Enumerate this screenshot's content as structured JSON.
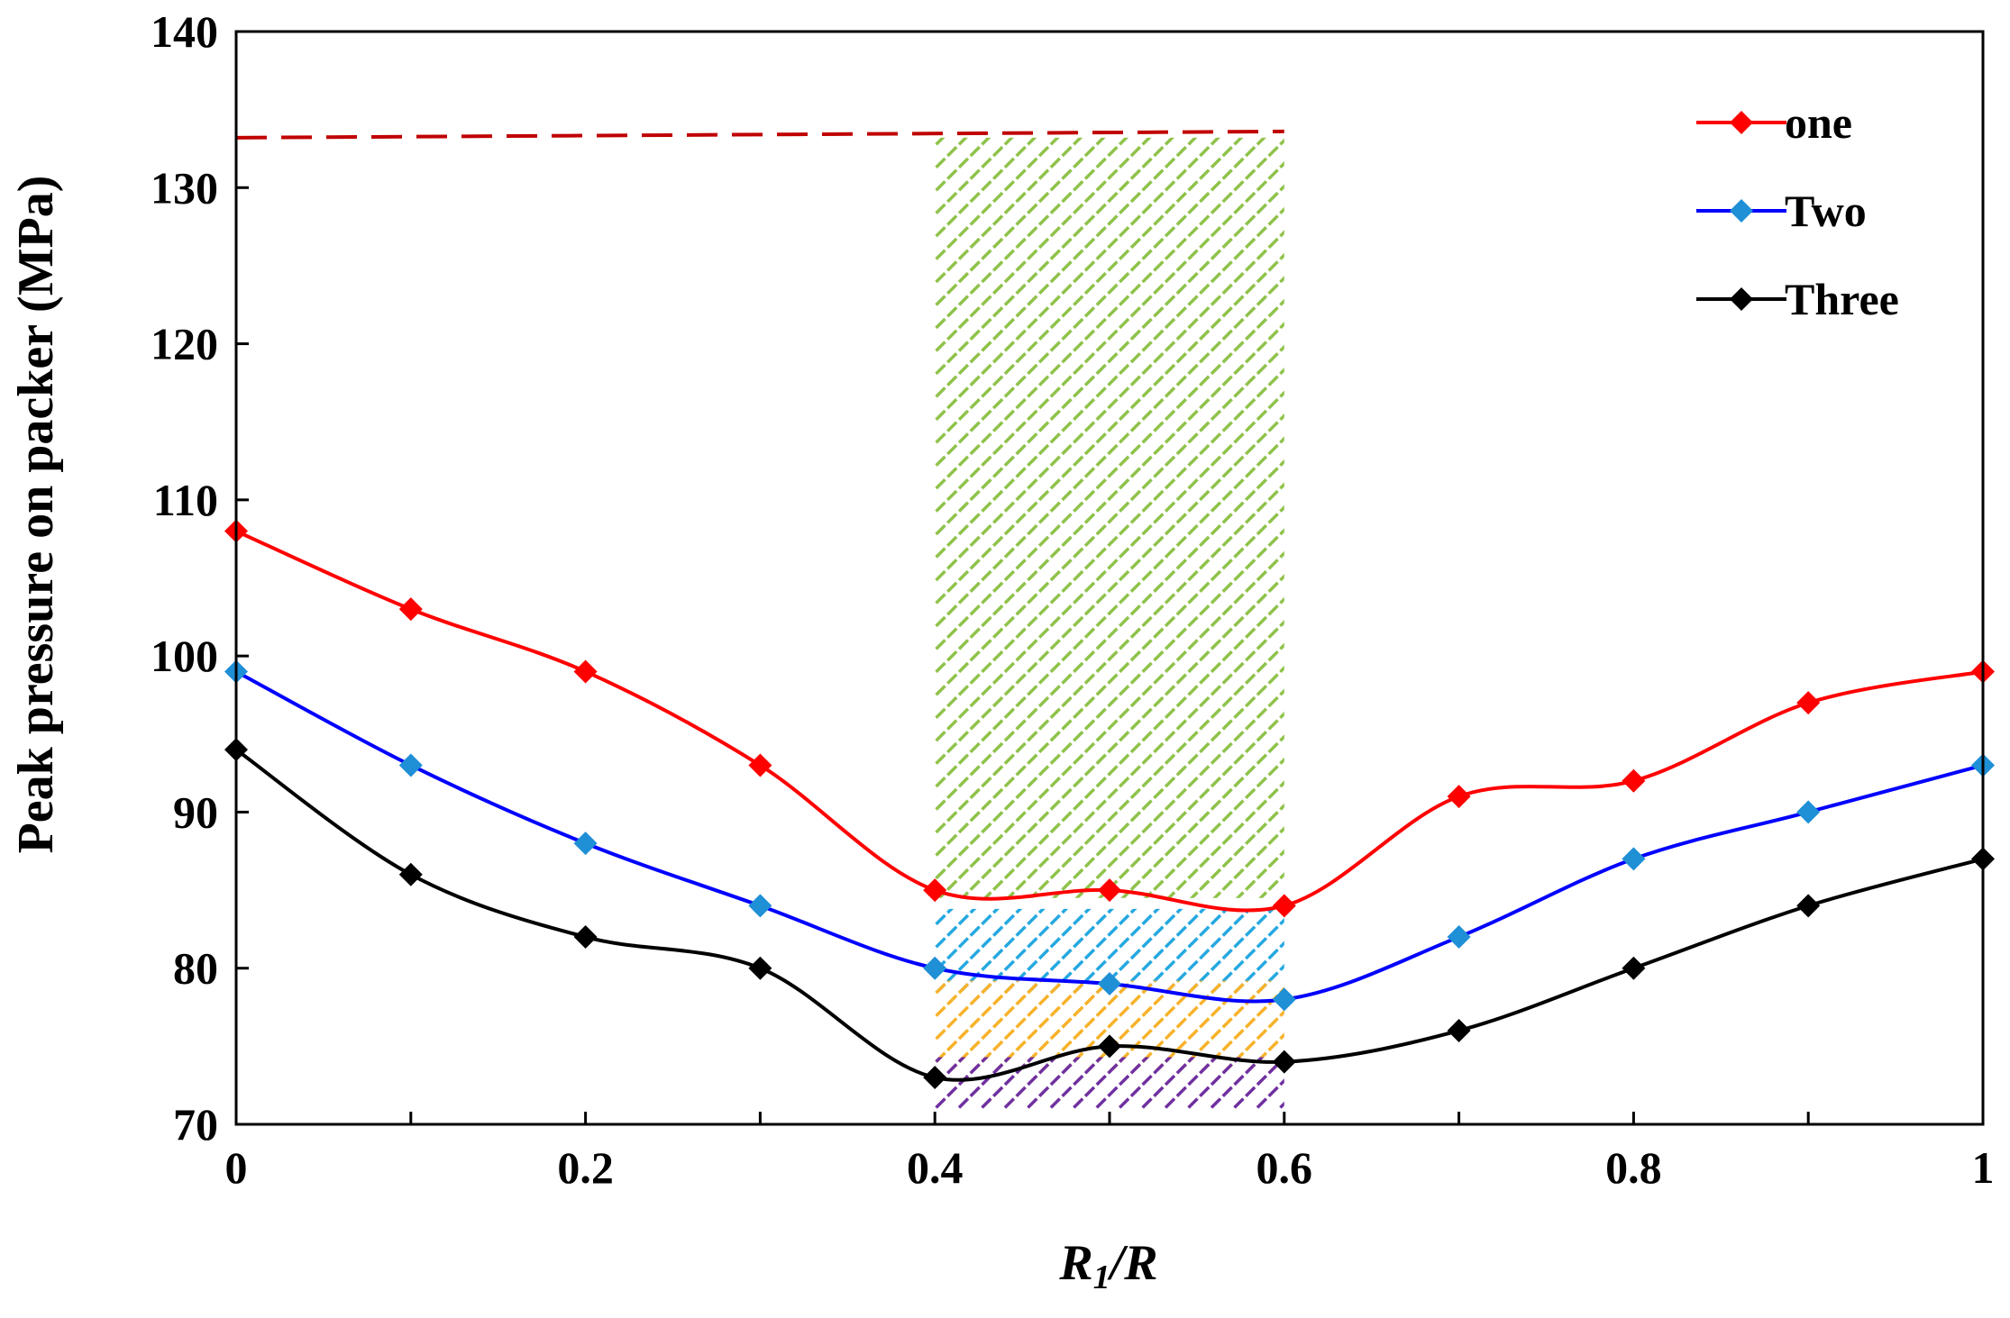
{
  "chart_data": {
    "type": "line",
    "xlabel_main": "R",
    "xlabel_sub": "1",
    "xlabel_rest": "/R",
    "ylabel": "Peak pressure on packer (MPa)",
    "xlim": [
      0,
      1
    ],
    "ylim": [
      70,
      140
    ],
    "x_ticks": [
      "0",
      "0.2",
      "0.4",
      "0.6",
      "0.8",
      "1"
    ],
    "x_tick_values": [
      0,
      0.2,
      0.4,
      0.6,
      0.8,
      1.0
    ],
    "y_ticks": [
      "70",
      "80",
      "90",
      "100",
      "110",
      "120",
      "130",
      "140"
    ],
    "y_tick_values": [
      70,
      80,
      90,
      100,
      110,
      120,
      130,
      140
    ],
    "x": [
      0,
      0.1,
      0.2,
      0.3,
      0.4,
      0.5,
      0.6,
      0.7,
      0.8,
      0.9,
      1.0
    ],
    "series": [
      {
        "name": "one",
        "color": "#ff0000",
        "values": [
          108,
          103,
          99,
          93,
          85,
          85,
          84,
          91,
          92,
          97,
          99
        ]
      },
      {
        "name": "Two",
        "color": "#0000ff",
        "marker_color": "#1f8fd6",
        "values": [
          99,
          93,
          88,
          84,
          80,
          79,
          78,
          82,
          87,
          90,
          93
        ]
      },
      {
        "name": "Three",
        "color": "#000000",
        "values": [
          94,
          86,
          82,
          80,
          73,
          75,
          74,
          76,
          80,
          84,
          87
        ]
      }
    ],
    "reference_line": {
      "y_start": 133.2,
      "y_end": 133.6,
      "x_start": 0,
      "x_end": 0.6,
      "color": "#c00000",
      "style": "dashed"
    },
    "highlight_range": [
      0.4,
      0.6
    ],
    "hatched_regions": [
      {
        "name": "green",
        "color": "#8fc24a",
        "y_from": 84.5,
        "y_to": 133.2
      },
      {
        "name": "blue",
        "color": "#25a8e0",
        "y_from": 78.5,
        "y_to": 83.8
      },
      {
        "name": "orange",
        "color": "#f7b22a",
        "y_from": 73.5,
        "y_to": 79.2
      },
      {
        "name": "purple",
        "color": "#7030a0",
        "y_from": 71.0,
        "y_to": 74.3
      }
    ],
    "legend_position": "top-right",
    "grid": false
  }
}
